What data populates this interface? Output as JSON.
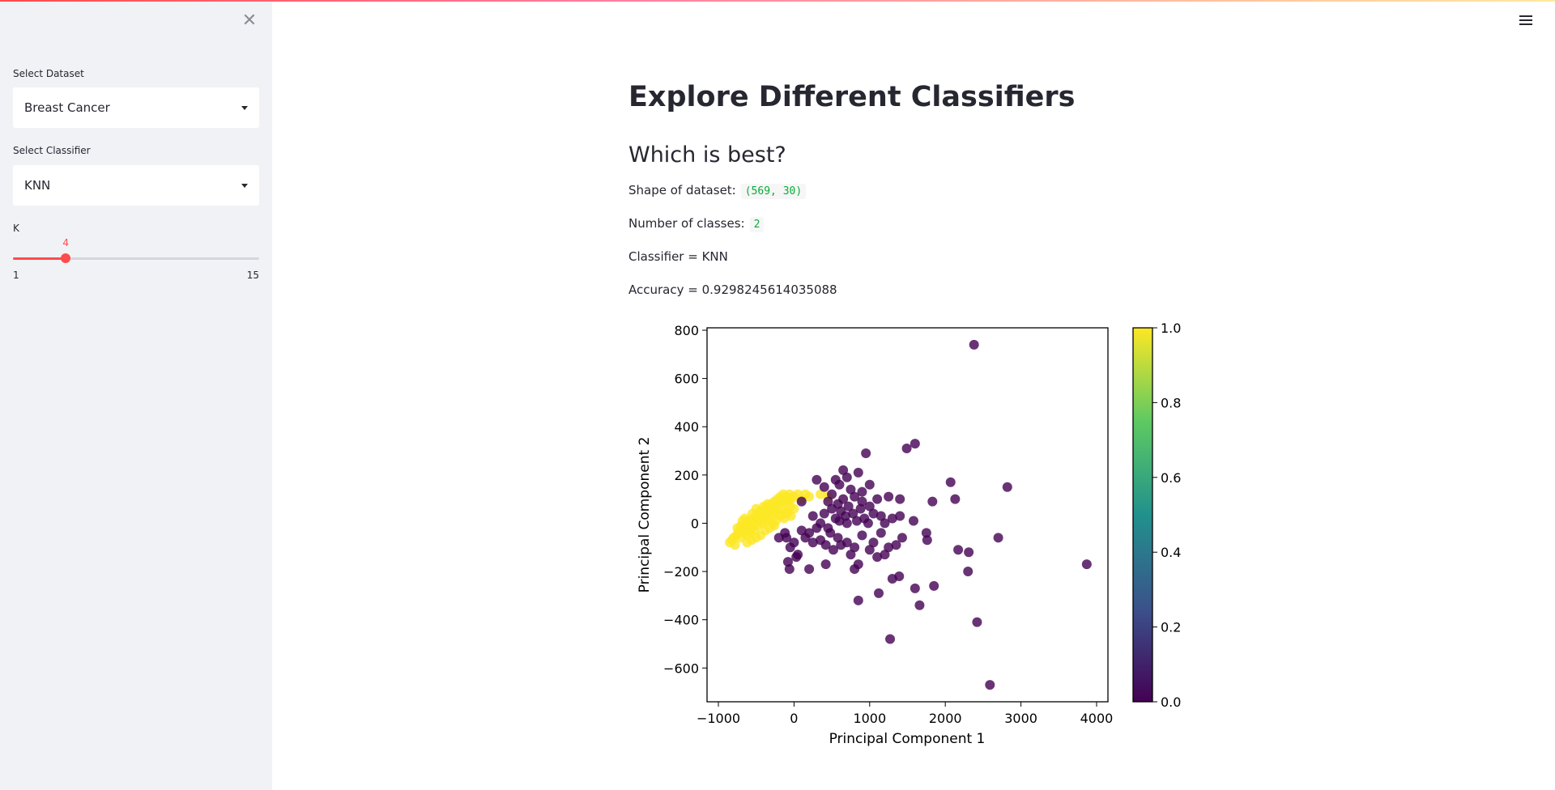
{
  "sidebar": {
    "close_icon": "close-icon",
    "dataset": {
      "label": "Select Dataset",
      "value": "Breast Cancer"
    },
    "classifier": {
      "label": "Select Classifier",
      "value": "KNN"
    },
    "slider": {
      "label": "K",
      "value": 4,
      "min": 1,
      "max": 15,
      "min_label": "1",
      "max_label": "15",
      "value_label": "4"
    }
  },
  "header": {
    "menu_icon": "hamburger-menu-icon"
  },
  "main": {
    "title": "Explore Different Classifiers",
    "subtitle": "Which is best?",
    "shape_label": "Shape of dataset:",
    "shape_value": "(569, 30)",
    "classes_label": "Number of classes:",
    "classes_value": "2",
    "classifier_text": "Classifier = KNN",
    "accuracy_text": "Accuracy = 0.9298245614035088"
  },
  "colors": {
    "accent": "#ff4b4b",
    "sidebar_bg": "#f0f2f6",
    "code_green": "#09ab3b",
    "class0": "#440154",
    "class1": "#fde725"
  },
  "chart_data": {
    "type": "scatter",
    "xlabel": "Principal Component 1",
    "ylabel": "Principal Component 2",
    "xlim": [
      -1150,
      4150
    ],
    "ylim": [
      -740,
      810
    ],
    "xticks": [
      -1000,
      0,
      1000,
      2000,
      3000,
      4000
    ],
    "xtick_labels": [
      "−1000",
      "0",
      "1000",
      "2000",
      "3000",
      "4000"
    ],
    "yticks": [
      -600,
      -400,
      -200,
      0,
      200,
      400,
      600,
      800
    ],
    "ytick_labels": [
      "−600",
      "−400",
      "−200",
      "0",
      "200",
      "400",
      "600",
      "800"
    ],
    "colorbar": {
      "min": 0.0,
      "max": 1.0,
      "ticks": [
        "0.0",
        "0.2",
        "0.4",
        "0.6",
        "0.8",
        "1.0"
      ],
      "colormap": "viridis"
    },
    "series": [
      {
        "class": 1,
        "color": "#fde725",
        "points": [
          [
            -850,
            -80
          ],
          [
            -820,
            -70
          ],
          [
            -800,
            -60
          ],
          [
            -780,
            -90
          ],
          [
            -760,
            -50
          ],
          [
            -740,
            -40
          ],
          [
            -720,
            -30
          ],
          [
            -700,
            -60
          ],
          [
            -680,
            -20
          ],
          [
            -660,
            -40
          ],
          [
            -640,
            -10
          ],
          [
            -620,
            0
          ],
          [
            -600,
            -30
          ],
          [
            -580,
            10
          ],
          [
            -560,
            -20
          ],
          [
            -540,
            20
          ],
          [
            -520,
            0
          ],
          [
            -500,
            30
          ],
          [
            -480,
            10
          ],
          [
            -460,
            40
          ],
          [
            -440,
            20
          ],
          [
            -420,
            50
          ],
          [
            -400,
            30
          ],
          [
            -380,
            60
          ],
          [
            -360,
            40
          ],
          [
            -340,
            70
          ],
          [
            -320,
            50
          ],
          [
            -300,
            80
          ],
          [
            -280,
            60
          ],
          [
            -260,
            90
          ],
          [
            -240,
            70
          ],
          [
            -220,
            100
          ],
          [
            -200,
            80
          ],
          [
            -180,
            110
          ],
          [
            -160,
            90
          ],
          [
            -140,
            120
          ],
          [
            -120,
            100
          ],
          [
            -100,
            110
          ],
          [
            -80,
            90
          ],
          [
            -60,
            120
          ],
          [
            -40,
            100
          ],
          [
            0,
            110
          ],
          [
            50,
            120
          ],
          [
            100,
            100
          ],
          [
            150,
            120
          ],
          [
            200,
            110
          ],
          [
            350,
            120
          ],
          [
            450,
            110
          ],
          [
            -700,
            -10
          ],
          [
            -650,
            20
          ],
          [
            -600,
            10
          ],
          [
            -550,
            40
          ],
          [
            -500,
            60
          ],
          [
            -450,
            50
          ],
          [
            -400,
            70
          ],
          [
            -350,
            80
          ],
          [
            -300,
            30
          ],
          [
            -250,
            50
          ],
          [
            -200,
            40
          ],
          [
            -150,
            60
          ],
          [
            -100,
            50
          ],
          [
            -50,
            70
          ],
          [
            0,
            60
          ],
          [
            -750,
            -20
          ],
          [
            -680,
            10
          ],
          [
            -620,
            -50
          ],
          [
            -580,
            -40
          ],
          [
            -520,
            -30
          ],
          [
            -480,
            -10
          ],
          [
            -420,
            0
          ],
          [
            -380,
            10
          ],
          [
            -320,
            20
          ],
          [
            -280,
            0
          ],
          [
            -240,
            10
          ],
          [
            -180,
            30
          ],
          [
            -130,
            20
          ],
          [
            -90,
            40
          ],
          [
            -40,
            30
          ],
          [
            -620,
            -80
          ],
          [
            -560,
            -70
          ],
          [
            -500,
            -60
          ],
          [
            -440,
            -50
          ],
          [
            -380,
            -30
          ],
          [
            -320,
            -20
          ],
          [
            -260,
            -10
          ]
        ]
      },
      {
        "class": 0,
        "color": "#440154",
        "points": [
          [
            2380,
            740
          ],
          [
            1600,
            330
          ],
          [
            1490,
            310
          ],
          [
            950,
            290
          ],
          [
            650,
            220
          ],
          [
            850,
            210
          ],
          [
            700,
            190
          ],
          [
            2070,
            170
          ],
          [
            2820,
            150
          ],
          [
            1000,
            160
          ],
          [
            300,
            180
          ],
          [
            400,
            150
          ],
          [
            500,
            120
          ],
          [
            550,
            180
          ],
          [
            600,
            160
          ],
          [
            750,
            140
          ],
          [
            800,
            110
          ],
          [
            900,
            130
          ],
          [
            1100,
            100
          ],
          [
            1250,
            110
          ],
          [
            1400,
            100
          ],
          [
            2130,
            100
          ],
          [
            1830,
            90
          ],
          [
            450,
            90
          ],
          [
            500,
            60
          ],
          [
            580,
            80
          ],
          [
            620,
            50
          ],
          [
            680,
            30
          ],
          [
            720,
            70
          ],
          [
            780,
            40
          ],
          [
            830,
            10
          ],
          [
            880,
            60
          ],
          [
            930,
            20
          ],
          [
            980,
            0
          ],
          [
            1050,
            40
          ],
          [
            1150,
            30
          ],
          [
            1200,
            0
          ],
          [
            1300,
            20
          ],
          [
            1400,
            30
          ],
          [
            1580,
            10
          ],
          [
            1750,
            -40
          ],
          [
            1760,
            -70
          ],
          [
            100,
            -30
          ],
          [
            150,
            -60
          ],
          [
            200,
            -40
          ],
          [
            250,
            -80
          ],
          [
            300,
            -20
          ],
          [
            350,
            -70
          ],
          [
            420,
            -90
          ],
          [
            480,
            -40
          ],
          [
            520,
            -110
          ],
          [
            580,
            -60
          ],
          [
            620,
            -90
          ],
          [
            700,
            -80
          ],
          [
            750,
            -130
          ],
          [
            800,
            -100
          ],
          [
            850,
            -170
          ],
          [
            900,
            -50
          ],
          [
            1000,
            -110
          ],
          [
            1050,
            -80
          ],
          [
            1100,
            -140
          ],
          [
            1150,
            -40
          ],
          [
            1200,
            -130
          ],
          [
            1250,
            -100
          ],
          [
            1350,
            -90
          ],
          [
            1430,
            -60
          ],
          [
            -100,
            -60
          ],
          [
            -50,
            -100
          ],
          [
            0,
            -80
          ],
          [
            50,
            -130
          ],
          [
            -200,
            -60
          ],
          [
            -120,
            -40
          ],
          [
            -80,
            -160
          ],
          [
            -60,
            -190
          ],
          [
            30,
            -140
          ],
          [
            200,
            -190
          ],
          [
            420,
            -170
          ],
          [
            800,
            -190
          ],
          [
            850,
            -320
          ],
          [
            1120,
            -290
          ],
          [
            1300,
            -230
          ],
          [
            1390,
            -220
          ],
          [
            1600,
            -270
          ],
          [
            1660,
            -340
          ],
          [
            1850,
            -260
          ],
          [
            2170,
            -110
          ],
          [
            2310,
            -120
          ],
          [
            2300,
            -200
          ],
          [
            2700,
            -60
          ],
          [
            3870,
            -170
          ],
          [
            2420,
            -410
          ],
          [
            2590,
            -670
          ],
          [
            1270,
            -480
          ],
          [
            100,
            90
          ],
          [
            700,
            0
          ],
          [
            600,
            10
          ],
          [
            900,
            90
          ],
          [
            400,
            40
          ],
          [
            250,
            30
          ],
          [
            350,
            0
          ],
          [
            450,
            -20
          ],
          [
            550,
            20
          ],
          [
            650,
            100
          ],
          [
            1000,
            70
          ]
        ]
      }
    ]
  }
}
